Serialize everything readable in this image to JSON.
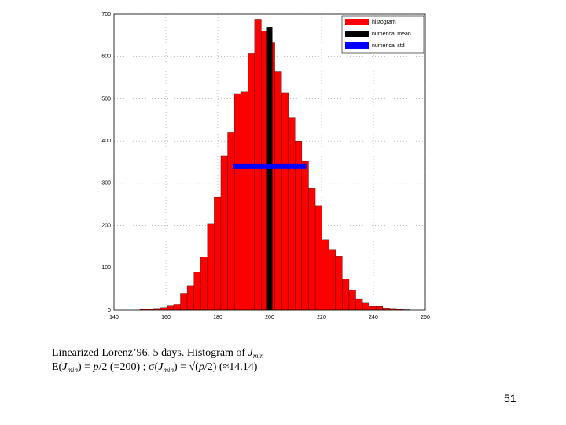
{
  "chart_data": {
    "type": "histogram",
    "bins": [
      150,
      152.6,
      155.2,
      157.8,
      160.4,
      163,
      165.6,
      168.2,
      170.8,
      173.4,
      176,
      178.6,
      181.2,
      183.8,
      186.4,
      189,
      191.6,
      194.2,
      196.8,
      199.4,
      202,
      204.6,
      207.2,
      209.8,
      212.4,
      215,
      217.6,
      220.2,
      222.8,
      225.4,
      228,
      230.6,
      233.2,
      235.8,
      238.4,
      241,
      243.6,
      246.2,
      248.8,
      251.4,
      254
    ],
    "series": [
      {
        "name": "histogram",
        "color": "#ff0000",
        "values": [
          2,
          2,
          4,
          6,
          10,
          14,
          40,
          58,
          90,
          125,
          205,
          268,
          365,
          420,
          512,
          516,
          608,
          688,
          660,
          632,
          565,
          514,
          455,
          400,
          352,
          288,
          246,
          166,
          142,
          128,
          73,
          48,
          26,
          17,
          9,
          9,
          5,
          4,
          2,
          1
        ]
      },
      {
        "name": "numerical mean",
        "color": "#000000",
        "x": 200,
        "top": 670
      },
      {
        "name": "numerical std",
        "color": "#0000ff",
        "xrange": [
          185.86,
          214.14
        ],
        "level": 340
      }
    ],
    "xlim": [
      140,
      260
    ],
    "xticks": [
      140,
      160,
      180,
      200,
      220,
      240,
      260
    ],
    "ylim": [
      0,
      700
    ],
    "yticks": [
      0,
      100,
      200,
      300,
      400,
      500,
      600,
      700
    ],
    "grid": true,
    "legend": "upper right"
  },
  "caption": {
    "line1": [
      "Linearized Lorenz’96. 5 days. Histogram of ",
      "J",
      "min"
    ],
    "line2": [
      "E(",
      "J",
      "min",
      ") = ",
      "p",
      "/2 (=200) ; σ(",
      "J",
      "min",
      ") = √(",
      "p",
      "/2) (≈14.14)"
    ]
  },
  "page_number": "51"
}
